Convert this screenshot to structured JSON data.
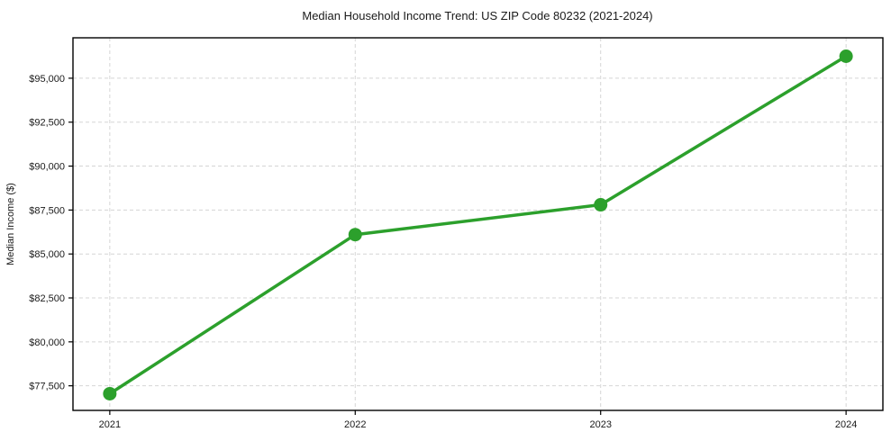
{
  "figure": {
    "background": "#ffffff"
  },
  "chart_data": {
    "type": "line",
    "title": "Median Household Income Trend: US ZIP Code 80232 (2021-2024)",
    "xlabel": "",
    "ylabel": "Median Income ($)",
    "x": [
      2021,
      2022,
      2023,
      2024
    ],
    "x_tick_labels": [
      "2021",
      "2022",
      "2023",
      "2024"
    ],
    "values": [
      77050,
      86100,
      87800,
      96250
    ],
    "y_ticks": [
      77500,
      80000,
      82500,
      85000,
      87500,
      90000,
      92500,
      95000
    ],
    "y_tick_prefix": "$",
    "xlim": [
      2020.85,
      2024.15
    ],
    "ylim": [
      76100,
      97300
    ],
    "grid": true,
    "grid_axes": "both",
    "grid_style": "dashed",
    "grid_color": "#d5d5d5",
    "line_color": "#2ca02c",
    "marker": "circle",
    "marker_radius": 7.5,
    "line_width": 3.5,
    "axis_color": "#000000",
    "tick_label_color": "#1a1a1a",
    "legend": null
  }
}
